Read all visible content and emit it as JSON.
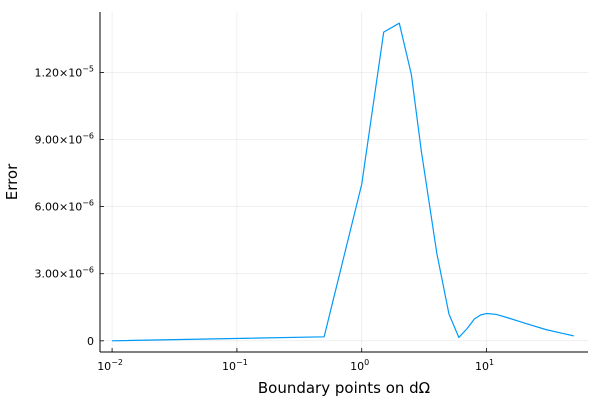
{
  "chart_data": {
    "type": "line",
    "title": "",
    "xlabel": "Boundary points on dΩ",
    "ylabel": "Error",
    "x_scale": "log10",
    "xlim": [
      0.008,
      65
    ],
    "ylim": [
      -5e-07,
      1.47e-05
    ],
    "grid": true,
    "legend": "none",
    "x_ticks": [
      {
        "value": 0.01,
        "base": "10",
        "exp": "−2"
      },
      {
        "value": 0.1,
        "base": "10",
        "exp": "−1"
      },
      {
        "value": 1,
        "base": "10",
        "exp": "0"
      },
      {
        "value": 10,
        "base": "10",
        "exp": "1"
      }
    ],
    "y_ticks": [
      {
        "value": 0,
        "mantissa": "0",
        "exp": ""
      },
      {
        "value": 3e-06,
        "mantissa": "3.00×10",
        "exp": "−6"
      },
      {
        "value": 6e-06,
        "mantissa": "6.00×10",
        "exp": "−6"
      },
      {
        "value": 9e-06,
        "mantissa": "9.00×10",
        "exp": "−6"
      },
      {
        "value": 1.2e-05,
        "mantissa": "1.20×10",
        "exp": "−5"
      }
    ],
    "series": [
      {
        "color": "#009af9",
        "x": [
          0.01,
          0.5,
          1.0,
          1.5,
          2.0,
          2.5,
          3.0,
          4.0,
          5.0,
          6.0,
          7.0,
          8.0,
          9.0,
          10.0,
          12.0,
          15.0,
          20.0,
          30.0,
          40.0,
          50.0
        ],
        "y": [
          0.0,
          1.8e-07,
          7e-06,
          1.38e-05,
          1.42e-05,
          1.19e-05,
          8.5e-06,
          3.9e-06,
          1.2e-06,
          1.5e-07,
          5.5e-07,
          9.8e-07,
          1.16e-06,
          1.22e-06,
          1.18e-06,
          1.02e-06,
          8e-07,
          5e-07,
          3.4e-07,
          2.2e-07
        ]
      }
    ]
  }
}
